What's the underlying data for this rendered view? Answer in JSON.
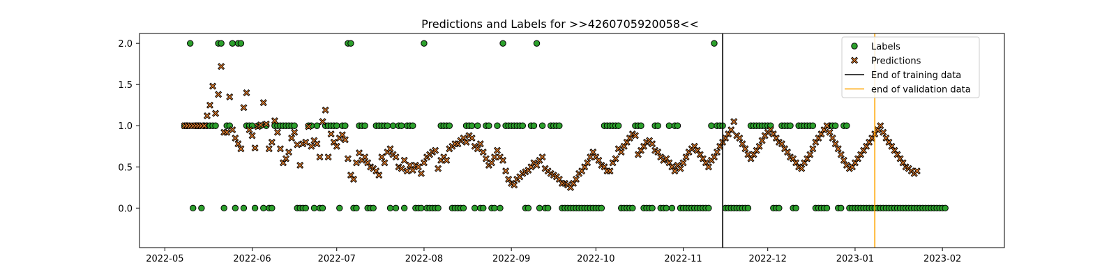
{
  "chart_data": {
    "type": "scatter",
    "title": "Predictions and Labels for >>4260705920058<<",
    "xlabel": "",
    "ylabel": "",
    "x_range": [
      "2022-04-22",
      "2023-02-23"
    ],
    "ylim": [
      -0.48,
      2.12
    ],
    "x_ticks": [
      {
        "date": "2022-05-01",
        "label": "2022-05"
      },
      {
        "date": "2022-06-01",
        "label": "2022-06"
      },
      {
        "date": "2022-07-01",
        "label": "2022-07"
      },
      {
        "date": "2022-08-01",
        "label": "2022-08"
      },
      {
        "date": "2022-09-01",
        "label": "2022-09"
      },
      {
        "date": "2022-10-01",
        "label": "2022-10"
      },
      {
        "date": "2022-11-01",
        "label": "2022-11"
      },
      {
        "date": "2022-12-01",
        "label": "2022-12"
      },
      {
        "date": "2023-01-01",
        "label": "2023-01"
      },
      {
        "date": "2023-02-01",
        "label": "2023-02"
      }
    ],
    "y_ticks": [
      {
        "value": 2.0,
        "label": "2.0"
      },
      {
        "value": 1.5,
        "label": "1.5"
      },
      {
        "value": 1.0,
        "label": "1.0"
      },
      {
        "value": 0.5,
        "label": "0.5"
      },
      {
        "value": 0.0,
        "label": "0.0"
      }
    ],
    "series": [
      {
        "name": "Labels",
        "marker": "circle",
        "color": "#2ca02c",
        "edgecolor": "#000000",
        "start_date": "2022-05-08",
        "values": [
          1,
          1,
          2,
          0,
          1,
          1,
          0,
          1,
          1,
          1,
          1,
          1,
          2,
          2,
          0,
          1,
          1,
          2,
          0,
          2,
          2,
          0,
          1,
          1,
          1,
          0,
          1,
          1,
          0,
          1,
          0,
          0,
          1,
          1,
          1,
          1,
          1,
          1,
          1,
          1,
          0,
          0,
          0,
          0,
          1,
          1,
          0,
          1,
          0,
          0,
          1,
          1,
          1,
          1,
          1,
          0,
          1,
          1,
          2,
          2,
          0,
          0,
          1,
          1,
          1,
          0,
          0,
          0,
          1,
          1,
          1,
          1,
          1,
          0,
          1,
          0,
          1,
          1,
          0,
          1,
          1,
          1,
          0,
          0,
          0,
          2,
          0,
          0,
          0,
          0,
          0,
          1,
          1,
          1,
          1,
          0,
          0,
          0,
          0,
          0,
          1,
          1,
          1,
          0,
          1,
          0,
          0,
          1,
          1,
          0,
          0,
          1,
          0,
          2,
          1,
          1,
          1,
          1,
          1,
          1,
          1,
          0,
          0,
          1,
          1,
          2,
          0,
          1,
          0,
          0,
          1,
          1,
          1,
          1,
          0,
          0,
          0,
          0,
          0,
          0,
          0,
          0,
          0,
          0,
          0,
          0,
          0,
          0,
          0,
          1,
          1,
          1,
          1,
          1,
          1,
          0,
          0,
          0,
          0,
          0,
          1,
          1,
          1,
          0,
          0,
          0,
          0,
          1,
          1,
          0,
          0,
          0,
          1,
          0,
          1,
          1,
          0,
          0,
          0,
          0,
          0,
          0,
          0,
          0,
          0,
          0,
          0,
          1,
          2,
          1,
          1,
          1,
          0,
          0,
          0,
          0,
          0,
          0,
          0,
          0,
          0,
          1,
          1,
          1,
          1,
          1,
          1,
          1,
          1,
          0,
          0,
          0,
          1,
          1,
          1,
          1,
          0,
          0,
          1,
          1,
          1,
          1,
          1,
          1,
          0,
          0,
          0,
          0,
          0,
          1,
          1,
          1,
          0,
          0,
          1,
          1,
          0,
          0,
          0,
          0,
          0,
          0,
          0,
          0,
          0,
          0,
          0,
          0,
          0,
          0,
          0,
          0,
          0,
          0,
          0,
          0,
          0,
          0,
          0,
          0,
          0,
          0,
          0,
          0,
          0,
          0,
          0,
          0,
          0,
          0,
          0
        ]
      },
      {
        "name": "Predictions",
        "marker": "x",
        "color": "#e07b2a",
        "edgecolor": "#000000",
        "start_date": "2022-05-08",
        "values": [
          1,
          1,
          1,
          1,
          1,
          1,
          1,
          1,
          1.12,
          1.25,
          1.48,
          1.15,
          1.38,
          1.72,
          0.92,
          0.92,
          1.35,
          0.95,
          0.85,
          0.78,
          0.72,
          1.22,
          1.4,
          0.95,
          0.88,
          0.73,
          0.99,
          1.01,
          1.28,
          1.02,
          0.72,
          0.8,
          1.06,
          0.92,
          0.72,
          0.55,
          0.6,
          0.68,
          0.85,
          0.92,
          0.77,
          0.52,
          0.78,
          0.8,
          0.99,
          0.75,
          0.82,
          0.78,
          0.62,
          1.05,
          1.19,
          0.62,
          0.9,
          0.8,
          0.75,
          0.85,
          0.89,
          0.83,
          0.6,
          0.4,
          0.35,
          0.55,
          0.67,
          0.58,
          0.62,
          0.55,
          0.5,
          0.48,
          0.45,
          0.4,
          0.62,
          0.55,
          0.68,
          0.72,
          0.65,
          0.62,
          0.5,
          0.48,
          0.58,
          0.45,
          0.52,
          0.46,
          0.52,
          0.5,
          0.42,
          0.55,
          0.62,
          0.65,
          0.68,
          0.7,
          0.48,
          0.58,
          0.62,
          0.58,
          0.72,
          0.75,
          0.78,
          0.78,
          0.82,
          0.85,
          0.8,
          0.88,
          0.85,
          0.75,
          0.72,
          0.78,
          0.68,
          0.6,
          0.52,
          0.55,
          0.62,
          0.7,
          0.62,
          0.58,
          0.45,
          0.35,
          0.3,
          0.28,
          0.35,
          0.38,
          0.42,
          0.44,
          0.46,
          0.5,
          0.55,
          0.52,
          0.58,
          0.62,
          0.48,
          0.45,
          0.42,
          0.4,
          0.38,
          0.35,
          0.3,
          0.3,
          0.28,
          0.25,
          0.3,
          0.35,
          0.42,
          0.45,
          0.5,
          0.55,
          0.62,
          0.68,
          0.62,
          0.58,
          0.52,
          0.5,
          0.45,
          0.45,
          0.55,
          0.6,
          0.72,
          0.68,
          0.75,
          0.8,
          0.85,
          0.9,
          0.88,
          0.65,
          0.7,
          0.75,
          0.8,
          0.82,
          0.78,
          0.7,
          0.68,
          0.62,
          0.58,
          0.6,
          0.55,
          0.5,
          0.45,
          0.52,
          0.48,
          0.55,
          0.62,
          0.68,
          0.72,
          0.75,
          0.7,
          0.65,
          0.6,
          0.55,
          0.5,
          0.58,
          0.62,
          0.68,
          0.75,
          0.8,
          0.85,
          0.9,
          0.95,
          1.05,
          0.88,
          0.85,
          0.78,
          0.72,
          0.65,
          0.6,
          0.65,
          0.7,
          0.75,
          0.82,
          0.88,
          0.92,
          0.95,
          0.9,
          0.85,
          0.8,
          0.78,
          0.72,
          0.68,
          0.62,
          0.6,
          0.55,
          0.5,
          0.48,
          0.55,
          0.6,
          0.65,
          0.72,
          0.8,
          0.85,
          0.9,
          0.95,
          1.0,
          0.92,
          0.85,
          0.78,
          0.72,
          0.65,
          0.58,
          0.52,
          0.48,
          0.5,
          0.55,
          0.6,
          0.65,
          0.7,
          0.75,
          0.8,
          0.85,
          0.9,
          0.95,
          1.0,
          0.92,
          0.85,
          0.8,
          0.75,
          0.7,
          0.65,
          0.6,
          0.55,
          0.5,
          0.48,
          0.45,
          0.42,
          0.45
        ]
      }
    ],
    "vertical_lines": [
      {
        "name": "End of training data",
        "date": "2022-11-15",
        "color": "#000000"
      },
      {
        "name": "end of validation data",
        "date": "2023-01-08",
        "color": "#ffa500"
      }
    ],
    "legend": {
      "position": "top-right",
      "entries": [
        {
          "label": "Labels",
          "kind": "circle"
        },
        {
          "label": "Predictions",
          "kind": "x"
        },
        {
          "label": "End of training data",
          "kind": "line-black"
        },
        {
          "label": "end of validation data",
          "kind": "line-orange"
        }
      ]
    },
    "grid": false
  }
}
